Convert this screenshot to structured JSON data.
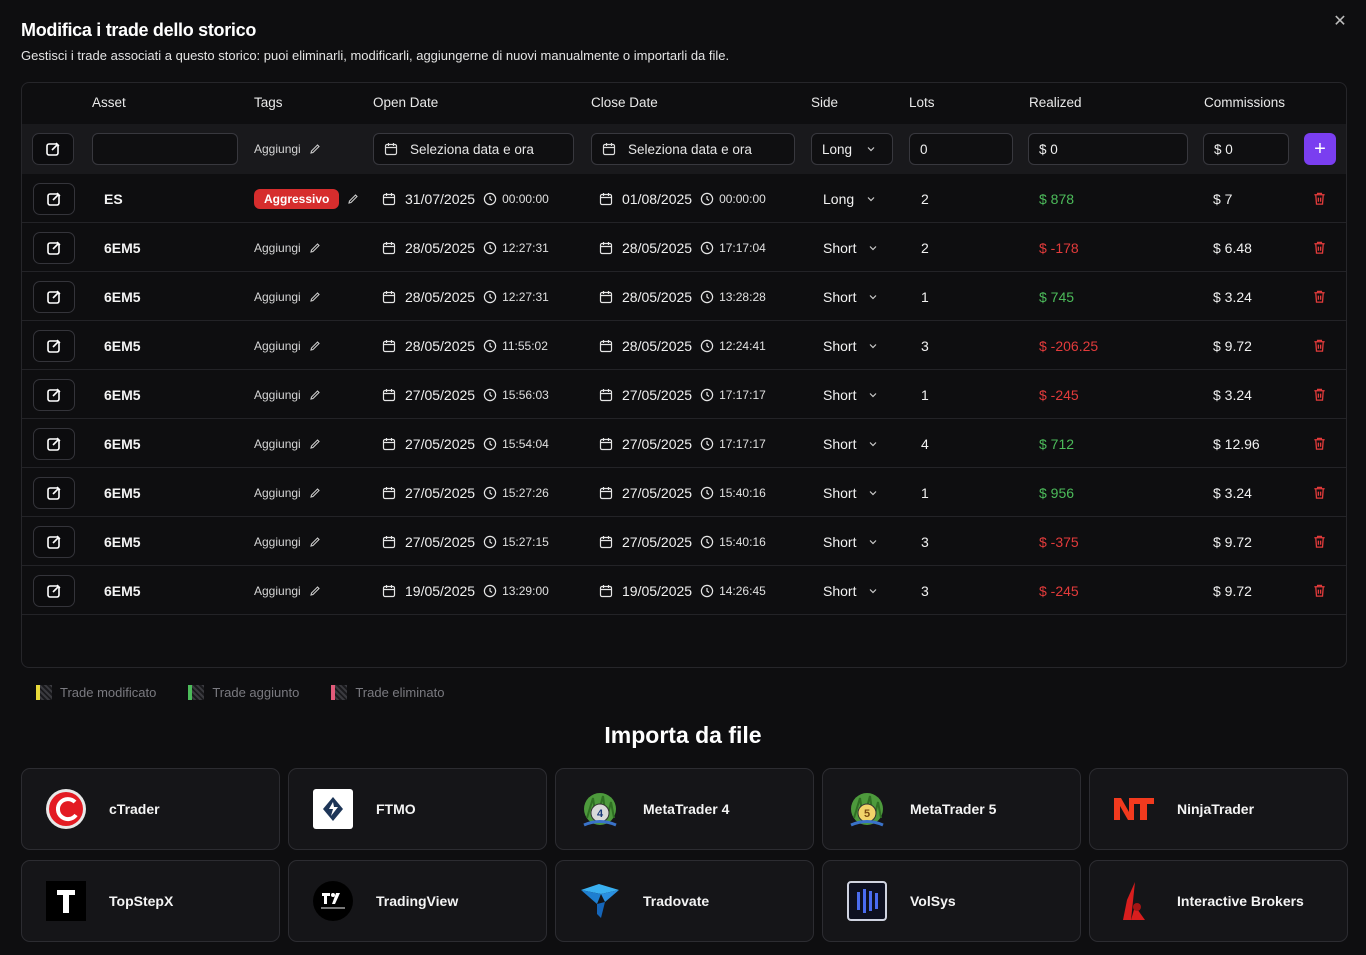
{
  "header": {
    "title": "Modifica i trade dello storico",
    "subtitle": "Gestisci i trade associati a questo storico: puoi eliminarli, modificarli, aggiungerne di nuovi manualmente o importarli da file.",
    "close_icon": "close-icon"
  },
  "table": {
    "columns": [
      "Asset",
      "Tags",
      "Open Date",
      "Close Date",
      "Side",
      "Lots",
      "Realized",
      "Commissions"
    ],
    "new_row": {
      "asset_value": "",
      "tags_label": "Aggiungi",
      "open_placeholder": "Seleziona data e ora",
      "close_placeholder": "Seleziona data e ora",
      "side": "Long",
      "lots": "0",
      "realized": "$ 0",
      "commissions": "$ 0",
      "add_label": "+"
    },
    "rows": [
      {
        "asset": "ES",
        "tag": "Aggressivo",
        "tag_badge": true,
        "open_date": "31/07/2025",
        "open_time": "00:00:00",
        "close_date": "01/08/2025",
        "close_time": "00:00:00",
        "side": "Long",
        "lots": "2",
        "realized": "$ 878",
        "realized_sign": "pos",
        "commissions": "$ 7"
      },
      {
        "asset": "6EM5",
        "tag": "Aggiungi",
        "tag_badge": false,
        "open_date": "28/05/2025",
        "open_time": "12:27:31",
        "close_date": "28/05/2025",
        "close_time": "17:17:04",
        "side": "Short",
        "lots": "2",
        "realized": "$ -178",
        "realized_sign": "neg",
        "commissions": "$ 6.48"
      },
      {
        "asset": "6EM5",
        "tag": "Aggiungi",
        "tag_badge": false,
        "open_date": "28/05/2025",
        "open_time": "12:27:31",
        "close_date": "28/05/2025",
        "close_time": "13:28:28",
        "side": "Short",
        "lots": "1",
        "realized": "$ 745",
        "realized_sign": "pos",
        "commissions": "$ 3.24"
      },
      {
        "asset": "6EM5",
        "tag": "Aggiungi",
        "tag_badge": false,
        "open_date": "28/05/2025",
        "open_time": "11:55:02",
        "close_date": "28/05/2025",
        "close_time": "12:24:41",
        "side": "Short",
        "lots": "3",
        "realized": "$ -206.25",
        "realized_sign": "neg",
        "commissions": "$ 9.72"
      },
      {
        "asset": "6EM5",
        "tag": "Aggiungi",
        "tag_badge": false,
        "open_date": "27/05/2025",
        "open_time": "15:56:03",
        "close_date": "27/05/2025",
        "close_time": "17:17:17",
        "side": "Short",
        "lots": "1",
        "realized": "$ -245",
        "realized_sign": "neg",
        "commissions": "$ 3.24"
      },
      {
        "asset": "6EM5",
        "tag": "Aggiungi",
        "tag_badge": false,
        "open_date": "27/05/2025",
        "open_time": "15:54:04",
        "close_date": "27/05/2025",
        "close_time": "17:17:17",
        "side": "Short",
        "lots": "4",
        "realized": "$ 712",
        "realized_sign": "pos",
        "commissions": "$ 12.96"
      },
      {
        "asset": "6EM5",
        "tag": "Aggiungi",
        "tag_badge": false,
        "open_date": "27/05/2025",
        "open_time": "15:27:26",
        "close_date": "27/05/2025",
        "close_time": "15:40:16",
        "side": "Short",
        "lots": "1",
        "realized": "$ 956",
        "realized_sign": "pos",
        "commissions": "$ 3.24"
      },
      {
        "asset": "6EM5",
        "tag": "Aggiungi",
        "tag_badge": false,
        "open_date": "27/05/2025",
        "open_time": "15:27:15",
        "close_date": "27/05/2025",
        "close_time": "15:40:16",
        "side": "Short",
        "lots": "3",
        "realized": "$ -375",
        "realized_sign": "neg",
        "commissions": "$ 9.72"
      },
      {
        "asset": "6EM5",
        "tag": "Aggiungi",
        "tag_badge": false,
        "open_date": "19/05/2025",
        "open_time": "13:29:00",
        "close_date": "19/05/2025",
        "close_time": "14:26:45",
        "side": "Short",
        "lots": "3",
        "realized": "$ -245",
        "realized_sign": "neg",
        "commissions": "$ 9.72"
      }
    ]
  },
  "legend": {
    "modified": "Trade modificato",
    "added": "Trade aggiunto",
    "deleted": "Trade eliminato"
  },
  "import": {
    "title": "Importa da file",
    "platforms": [
      {
        "name": "cTrader",
        "icon": "ctrader-logo-icon"
      },
      {
        "name": "FTMO",
        "icon": "ftmo-logo-icon"
      },
      {
        "name": "MetaTrader 4",
        "icon": "metatrader4-logo-icon"
      },
      {
        "name": "MetaTrader 5",
        "icon": "metatrader5-logo-icon"
      },
      {
        "name": "NinjaTrader",
        "icon": "ninjatrader-logo-icon"
      },
      {
        "name": "TopStepX",
        "icon": "topstepx-logo-icon"
      },
      {
        "name": "TradingView",
        "icon": "tradingview-logo-icon"
      },
      {
        "name": "Tradovate",
        "icon": "tradovate-logo-icon"
      },
      {
        "name": "VolSys",
        "icon": "volsys-logo-icon"
      },
      {
        "name": "Interactive Brokers",
        "icon": "interactive-brokers-logo-icon"
      }
    ]
  },
  "colors": {
    "accent": "#7a3ef0",
    "positive": "#4cbb5a",
    "negative": "#e23b3b",
    "tag_badge": "#d62d2d"
  }
}
